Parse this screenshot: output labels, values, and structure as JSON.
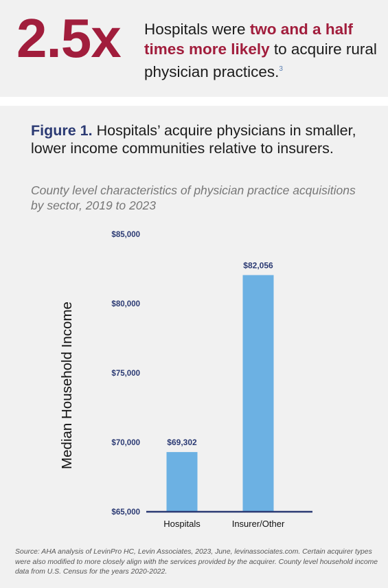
{
  "callout": {
    "stat": "2.5x",
    "text_before": "Hospitals were ",
    "highlight": "two and a half times more likely",
    "text_after": " to acquire rural physician practices.",
    "footnote": "3"
  },
  "figure": {
    "label": "Figure 1.",
    "title": " Hospitals’ acquire physicians in smaller, lower income communities relative to insurers.",
    "subtitle": "County level characteristics of physician practice acquisitions by sector, 2019 to 2023"
  },
  "chart_data": {
    "type": "bar",
    "categories": [
      "Hospitals",
      "Insurer/Other"
    ],
    "values": [
      69302,
      82056
    ],
    "value_labels": [
      "$69,302",
      "$82,056"
    ],
    "ylabel": "Median Household Income",
    "xlabel": "",
    "ylim": [
      65000,
      85000
    ],
    "yticks": [
      65000,
      70000,
      75000,
      80000,
      85000
    ],
    "ytick_labels": [
      "$65,000",
      "$70,000",
      "$75,000",
      "$80,000",
      "$85,000"
    ],
    "grid": false,
    "legend": "none",
    "bar_color": "#6cb1e3",
    "axis_color": "#2b3a73",
    "label_color": "#2b3a73"
  },
  "source": "Source: AHA analysis of LevinPro HC, Levin Associates, 2023, June, levinassociates.com. Certain acquirer types were also modified to more closely align with the services provided by the acquirer. County level household income data from U.S. Census for the years 2020-2022."
}
